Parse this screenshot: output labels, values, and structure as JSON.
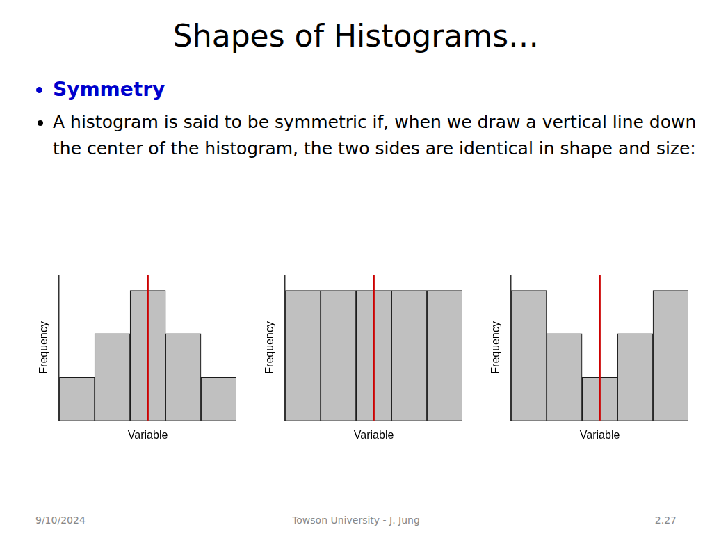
{
  "title": "Shapes of Histograms…",
  "annotations": [
    "Symmetry",
    "A histogram is said to be symmetric if, when we draw a vertical line down the center of the histogram, the two sides are identical in shape and size:",
    "9/10/2024",
    "Towson University - J. Jung",
    "2.27"
  ],
  "chart_data": [
    {
      "type": "bar",
      "categories": [
        null,
        null,
        null,
        null,
        null
      ],
      "values": [
        1,
        2,
        3,
        2,
        1
      ],
      "color": "#c0c0c0",
      "xlabel": "Variable",
      "ylabel": "Frequency",
      "ylim": [
        0,
        3.36
      ],
      "grid": false,
      "tick_labels": false
    },
    {
      "type": "bar",
      "categories": [
        null,
        null,
        null,
        null,
        null
      ],
      "values": [
        3,
        3,
        3,
        3,
        3
      ],
      "color": "#c0c0c0",
      "xlabel": "Variable",
      "ylabel": "Frequency",
      "ylim": [
        0,
        3.36
      ],
      "grid": false,
      "tick_labels": false
    },
    {
      "type": "bar",
      "categories": [
        null,
        null,
        null,
        null,
        null
      ],
      "values": [
        3,
        2,
        1,
        2,
        3
      ],
      "color": "#c0c0c0",
      "xlabel": "Variable",
      "ylabel": "Frequency",
      "ylim": [
        0,
        3.36
      ],
      "grid": false,
      "tick_labels": false
    }
  ]
}
